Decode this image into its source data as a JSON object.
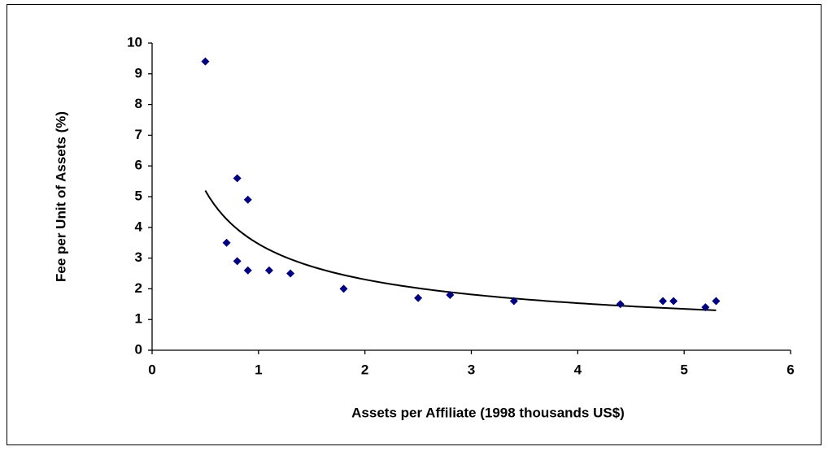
{
  "chart_data": {
    "type": "scatter",
    "xlabel": "Assets per Affiliate (1998 thousands US$)",
    "ylabel": "Fee per Unit of Assets (%)",
    "x": [
      0.5,
      0.7,
      0.8,
      0.8,
      0.9,
      0.9,
      1.1,
      1.3,
      1.8,
      2.5,
      2.8,
      3.4,
      4.4,
      4.8,
      4.9,
      5.2,
      5.3
    ],
    "values": [
      9.4,
      3.5,
      5.6,
      2.9,
      4.9,
      2.6,
      2.6,
      2.5,
      2.0,
      1.7,
      1.8,
      1.6,
      1.5,
      1.6,
      1.6,
      1.4,
      1.6
    ],
    "color": "#000080",
    "trendline": {
      "type": "power",
      "coefficient": 3.46,
      "exponent": -0.587,
      "x_range": [
        0.5,
        5.3
      ],
      "color": "#000000"
    },
    "xlim": [
      0,
      6
    ],
    "xticks": [
      0,
      1,
      2,
      3,
      4,
      5,
      6
    ],
    "ylim": [
      0,
      10
    ],
    "yticks": [
      0,
      1,
      2,
      3,
      4,
      5,
      6,
      7,
      8,
      9,
      10
    ],
    "grid": false
  }
}
